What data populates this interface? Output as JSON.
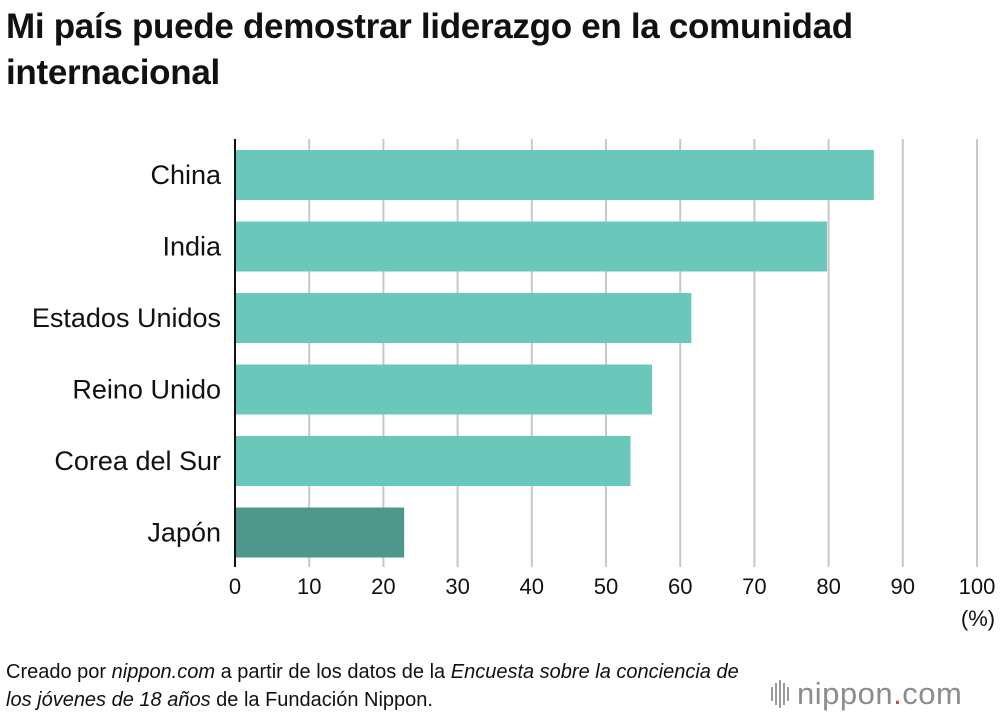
{
  "title": "Mi país puede demostrar liderazgo en la comunidad internacional",
  "chart_data": {
    "type": "bar",
    "orientation": "horizontal",
    "title": "Mi país puede demostrar liderazgo en la comunidad internacional",
    "categories": [
      "China",
      "India",
      "Estados Unidos",
      "Reino Unido",
      "Corea del Sur",
      "Japón"
    ],
    "values": [
      86.1,
      79.8,
      61.5,
      56.2,
      53.3,
      22.8
    ],
    "colors": [
      "#6ac8bb",
      "#6ac8bb",
      "#6ac8bb",
      "#6ac8bb",
      "#6ac8bb",
      "#4f978b"
    ],
    "xlim": [
      0,
      100
    ],
    "xticks": [
      "0",
      "10",
      "20",
      "30",
      "40",
      "50",
      "60",
      "70",
      "80",
      "90",
      "100"
    ],
    "xunit": "(%)",
    "grid": true
  },
  "source": {
    "part1": "Creado por ",
    "part2": "nippon.com",
    "part3": " a partir de los datos de la ",
    "part4": "Encuesta sobre la conciencia de los jóvenes de 18 años",
    "part5": " de la Fundación Nippon."
  },
  "logo": {
    "text": "nippon",
    "dot": ".",
    "suffix": "com",
    "dot_color": "#d64545"
  }
}
